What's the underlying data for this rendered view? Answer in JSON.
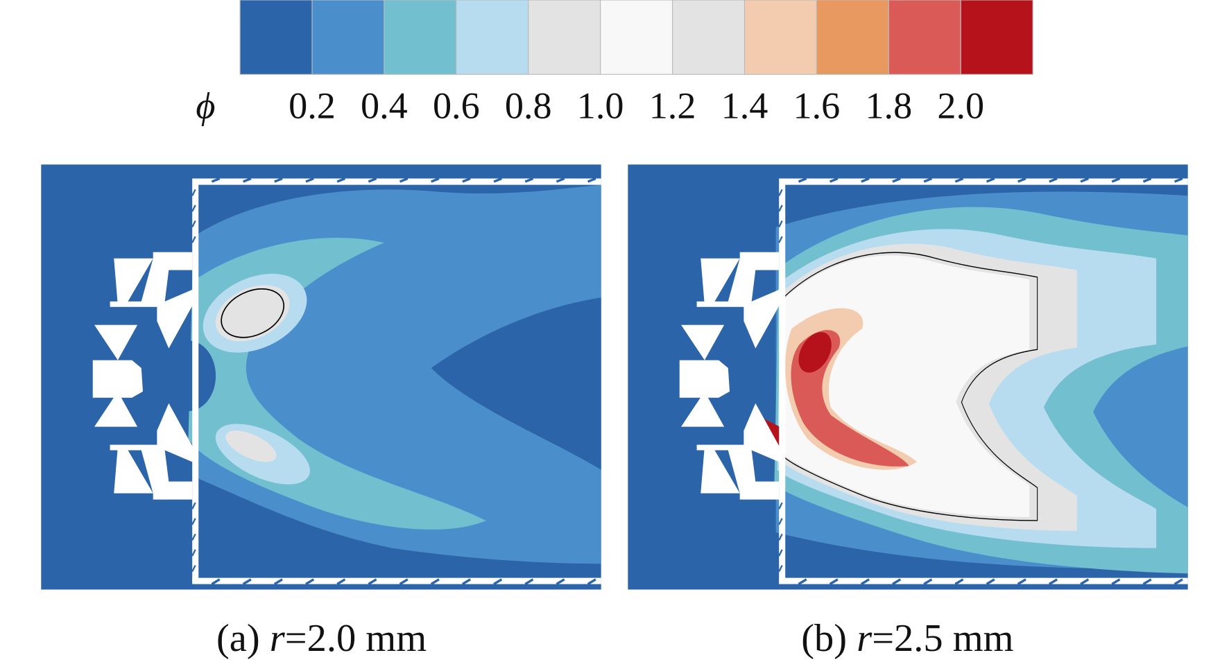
{
  "colorbar": {
    "symbol": "ϕ",
    "labels": [
      "0.2",
      "0.4",
      "0.6",
      "0.8",
      "1.0",
      "1.2",
      "1.4",
      "1.6",
      "1.8",
      "2.0"
    ],
    "colors": [
      "#2b64a8",
      "#4a8fcc",
      "#72bfcf",
      "#b7dbef",
      "#e3e3e3",
      "#f8f8f8",
      "#e3e3e3",
      "#f3ccb0",
      "#e8995f",
      "#d95a57",
      "#b5121b"
    ]
  },
  "panels": [
    {
      "label": "(a)",
      "variable": "r",
      "value": "=2.0 mm"
    },
    {
      "label": "(b)",
      "variable": "r",
      "value": "=2.5 mm"
    }
  ]
}
